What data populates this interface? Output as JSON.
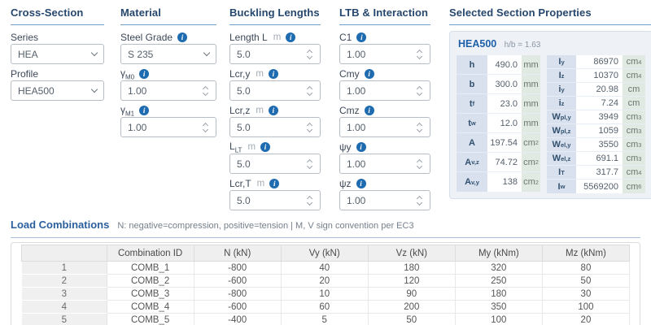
{
  "colors": {
    "accent_blue": "#1e6bb0",
    "heading_navy": "#26476d",
    "heading_underline": "#6f9cc8",
    "props_panel_bg": "#eef2f7",
    "props_label_bg": "#d8e1ed",
    "props_unit_bg": "#e0e9e2",
    "props_name_blue": "#1d5fa8",
    "table_header_bg": "#efefef"
  },
  "panels": {
    "cross_section": {
      "title": "Cross-Section",
      "fields": [
        {
          "key": "series",
          "label": "Series",
          "type": "select",
          "value": "HEA"
        },
        {
          "key": "profile",
          "label": "Profile",
          "type": "select",
          "value": "HEA500"
        }
      ]
    },
    "material": {
      "title": "Material",
      "fields": [
        {
          "key": "steel-grade",
          "label": "Steel Grade",
          "info": true,
          "type": "select",
          "value": "S 235"
        },
        {
          "key": "gamma-m0",
          "label": "γ",
          "sub": "M0",
          "info": true,
          "type": "number",
          "value": "1.00"
        },
        {
          "key": "gamma-m1",
          "label": "γ",
          "sub": "M1",
          "info": true,
          "type": "number",
          "value": "1.00"
        }
      ]
    },
    "buckling": {
      "title": "Buckling Lengths",
      "fields": [
        {
          "key": "length-l",
          "label": "Length L",
          "unit": "m",
          "info": true,
          "type": "number",
          "value": "5.0"
        },
        {
          "key": "lcr-y",
          "label": "Lcr,y",
          "unit": "m",
          "info": true,
          "type": "number",
          "value": "5.0"
        },
        {
          "key": "lcr-z",
          "label": "Lcr,z",
          "unit": "m",
          "info": true,
          "type": "number",
          "value": "5.0"
        },
        {
          "key": "l-lt",
          "label": "L",
          "sub": "LT",
          "unit": "m",
          "info": true,
          "type": "number",
          "value": "5.0"
        },
        {
          "key": "lcr-t",
          "label": "Lcr,T",
          "unit": "m",
          "info": true,
          "type": "number",
          "value": "5.0"
        }
      ]
    },
    "ltb": {
      "title": "LTB & Interaction",
      "fields": [
        {
          "key": "c1",
          "label": "C1",
          "info": true,
          "type": "number",
          "value": "1.00"
        },
        {
          "key": "cmy",
          "label": "Cmy",
          "info": true,
          "type": "number",
          "value": "1.00"
        },
        {
          "key": "cmz",
          "label": "Cmz",
          "info": true,
          "type": "number",
          "value": "1.00"
        },
        {
          "key": "psi-y",
          "label": "ψy",
          "info": true,
          "type": "number",
          "value": "1.00"
        },
        {
          "key": "psi-z",
          "label": "ψz",
          "info": true,
          "type": "number",
          "value": "1.00"
        }
      ]
    },
    "properties": {
      "title": "Selected Section Properties",
      "section_name": "HEA500",
      "ratio_label": "h/b = 1.63",
      "left_rows": [
        {
          "sym": "h",
          "sub": "",
          "value": "490.0",
          "unit": "mm",
          "usup": ""
        },
        {
          "sym": "b",
          "sub": "",
          "value": "300.0",
          "unit": "mm",
          "usup": ""
        },
        {
          "sym": "t",
          "sub": "f",
          "value": "23.0",
          "unit": "mm",
          "usup": ""
        },
        {
          "sym": "t",
          "sub": "w",
          "value": "12.0",
          "unit": "mm",
          "usup": ""
        },
        {
          "sym": "A",
          "sub": "",
          "value": "197.54",
          "unit": "cm",
          "usup": "2"
        },
        {
          "sym": "A",
          "sub": "v,z",
          "value": "74.72",
          "unit": "cm",
          "usup": "2"
        },
        {
          "sym": "A",
          "sub": "v,y",
          "value": "138",
          "unit": "cm",
          "usup": "2"
        }
      ],
      "right_rows": [
        {
          "sym": "I",
          "sub": "y",
          "value": "86970",
          "unit": "cm",
          "usup": "4"
        },
        {
          "sym": "I",
          "sub": "z",
          "value": "10370",
          "unit": "cm",
          "usup": "4"
        },
        {
          "sym": "i",
          "sub": "y",
          "value": "20.98",
          "unit": "cm",
          "usup": ""
        },
        {
          "sym": "i",
          "sub": "z",
          "value": "7.24",
          "unit": "cm",
          "usup": ""
        },
        {
          "sym": "W",
          "sub": "pl,y",
          "value": "3949",
          "unit": "cm",
          "usup": "3"
        },
        {
          "sym": "W",
          "sub": "pl,z",
          "value": "1059",
          "unit": "cm",
          "usup": "3"
        },
        {
          "sym": "W",
          "sub": "el,y",
          "value": "3550",
          "unit": "cm",
          "usup": "3"
        },
        {
          "sym": "W",
          "sub": "el,z",
          "value": "691.1",
          "unit": "cm",
          "usup": "3"
        },
        {
          "sym": "I",
          "sub": "T",
          "value": "317.7",
          "unit": "cm",
          "usup": "4"
        },
        {
          "sym": "I",
          "sub": "w",
          "value": "5569200",
          "unit": "cm",
          "usup": "6"
        }
      ]
    }
  },
  "load_combinations": {
    "title": "Load Combinations",
    "note": "N: negative=compression, positive=tension  |  M, V sign convention per EC3",
    "columns": [
      "",
      "Combination ID",
      "N (kN)",
      "Vy (kN)",
      "Vz (kN)",
      "My (kNm)",
      "Mz (kNm)"
    ],
    "rows": [
      [
        "1",
        "COMB_1",
        "-800",
        "40",
        "180",
        "320",
        "80"
      ],
      [
        "2",
        "COMB_2",
        "-600",
        "20",
        "120",
        "250",
        "50"
      ],
      [
        "3",
        "COMB_3",
        "-800",
        "10",
        "90",
        "180",
        "30"
      ],
      [
        "4",
        "COMB_4",
        "-600",
        "60",
        "200",
        "350",
        "100"
      ],
      [
        "5",
        "COMB_5",
        "-400",
        "5",
        "50",
        "100",
        "20"
      ]
    ]
  }
}
